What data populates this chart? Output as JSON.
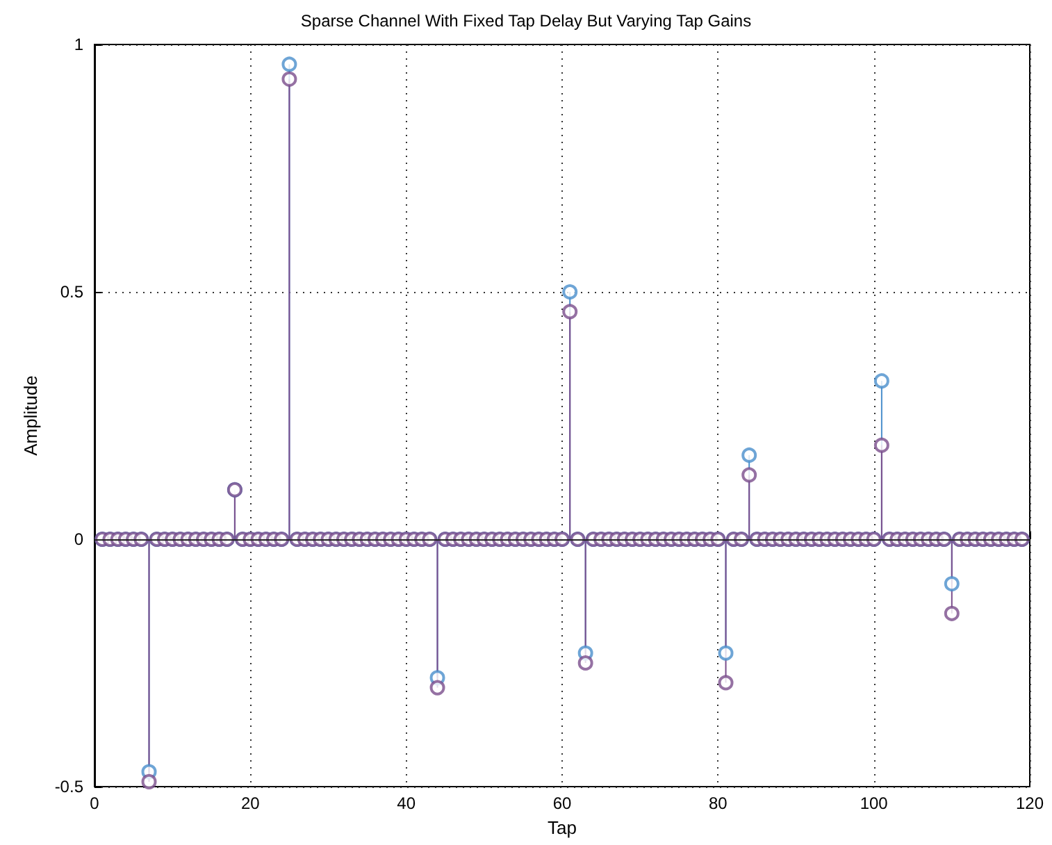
{
  "chart_data": {
    "type": "lollipop",
    "title": "Sparse Channel With Fixed Tap Delay But Varying Tap Gains",
    "xlabel": "Tap",
    "ylabel": "Amplitude",
    "x": [
      1,
      2,
      3,
      4,
      5,
      6,
      7,
      8,
      9,
      10,
      11,
      12,
      13,
      14,
      15,
      16,
      17,
      18,
      19,
      20,
      21,
      22,
      23,
      24,
      25,
      26,
      27,
      28,
      29,
      30,
      31,
      32,
      33,
      34,
      35,
      36,
      37,
      38,
      39,
      40,
      41,
      42,
      43,
      44,
      45,
      46,
      47,
      48,
      49,
      50,
      51,
      52,
      53,
      54,
      55,
      56,
      57,
      58,
      59,
      60,
      61,
      62,
      63,
      64,
      65,
      66,
      67,
      68,
      69,
      70,
      71,
      72,
      73,
      74,
      75,
      76,
      77,
      78,
      79,
      80,
      81,
      82,
      83,
      84,
      85,
      86,
      87,
      88,
      89,
      90,
      91,
      92,
      93,
      94,
      95,
      96,
      97,
      98,
      99,
      100,
      101,
      102,
      103,
      104,
      105,
      106,
      107,
      108,
      109,
      110,
      111,
      112,
      113,
      114,
      115,
      116,
      117,
      118,
      119
    ],
    "series": [
      {
        "color": "#4a8fcc",
        "values": [
          0,
          0,
          0,
          0,
          0,
          0,
          -0.47,
          0,
          0,
          0,
          0,
          0,
          0,
          0,
          0,
          0,
          0,
          0.1,
          0,
          0,
          0,
          0,
          0,
          0,
          0.96,
          0,
          0,
          0,
          0,
          0,
          0,
          0,
          0,
          0,
          0,
          0,
          0,
          0,
          0,
          0,
          0,
          0,
          0,
          -0.28,
          0,
          0,
          0,
          0,
          0,
          0,
          0,
          0,
          0,
          0,
          0,
          0,
          0,
          0,
          0,
          0,
          0.5,
          0,
          -0.23,
          0,
          0,
          0,
          0,
          0,
          0,
          0,
          0,
          0,
          0,
          0,
          0,
          0,
          0,
          0,
          0,
          0,
          -0.23,
          0,
          0,
          0.17,
          0,
          0,
          0,
          0,
          0,
          0,
          0,
          0,
          0,
          0,
          0,
          0,
          0,
          0,
          0,
          0,
          0.32,
          0,
          0,
          0,
          0,
          0,
          0,
          0,
          0,
          -0.09,
          0,
          0,
          0,
          0,
          0,
          0,
          0,
          0,
          0
        ]
      },
      {
        "color": "#7b4e8c",
        "values": [
          0,
          0,
          0,
          0,
          0,
          0,
          -0.49,
          0,
          0,
          0,
          0,
          0,
          0,
          0,
          0,
          0,
          0,
          0.1,
          0,
          0,
          0,
          0,
          0,
          0,
          0.93,
          0,
          0,
          0,
          0,
          0,
          0,
          0,
          0,
          0,
          0,
          0,
          0,
          0,
          0,
          0,
          0,
          0,
          0,
          -0.3,
          0,
          0,
          0,
          0,
          0,
          0,
          0,
          0,
          0,
          0,
          0,
          0,
          0,
          0,
          0,
          0,
          0.46,
          0,
          -0.25,
          0,
          0,
          0,
          0,
          0,
          0,
          0,
          0,
          0,
          0,
          0,
          0,
          0,
          0,
          0,
          0,
          0,
          -0.29,
          0,
          0,
          0.13,
          0,
          0,
          0,
          0,
          0,
          0,
          0,
          0,
          0,
          0,
          0,
          0,
          0,
          0,
          0,
          0,
          0.19,
          0,
          0,
          0,
          0,
          0,
          0,
          0,
          0,
          -0.15,
          0,
          0,
          0,
          0,
          0,
          0,
          0,
          0,
          0
        ]
      }
    ],
    "xlim": [
      0,
      120
    ],
    "xticks": [
      0,
      20,
      40,
      60,
      80,
      100,
      120
    ],
    "ylim": [
      -0.5,
      1
    ],
    "yticks": [
      -0.5,
      0,
      0.5,
      1
    ],
    "ref_lines": [
      {
        "axis": "y",
        "value": 0,
        "color": "#222222"
      }
    ],
    "grid": true,
    "marker": "circle",
    "legend": false
  }
}
